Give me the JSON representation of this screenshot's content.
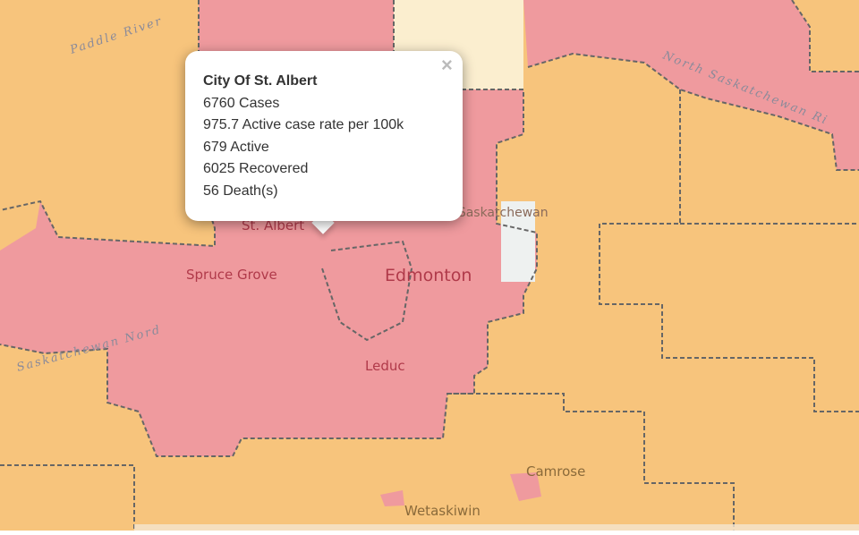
{
  "popup": {
    "close": "×",
    "title": "City Of St. Albert",
    "lines": [
      "6760 Cases",
      "975.7 Active case rate per 100k",
      "679 Active",
      "6025 Recovered",
      "56 Death(s)"
    ]
  },
  "map_labels": [
    "Paddle River",
    "North Saskatchewan Ri",
    "St. Albert",
    "Edmonton",
    "Spruce Grove",
    "Leduc",
    "Camrose",
    "Wetaskiwin",
    "Fort Saskatchewan",
    "Saskatchewan Nord"
  ]
}
